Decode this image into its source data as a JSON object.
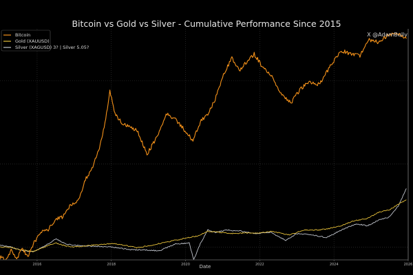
{
  "chart_data": {
    "type": "line",
    "title": "Bitcoin vs Gold vs Silver - Cumulative Performance Since 2015",
    "xlabel": "Date",
    "ylabel": "",
    "y_scale": "log",
    "y_unit": "growth multiple of 2015 value (approx.)",
    "xlim": [
      2015.0,
      2026.0
    ],
    "ylim": [
      0.7,
      420
    ],
    "x_ticks": [
      2016,
      2018,
      2020,
      2022,
      2024,
      2026
    ],
    "x_tick_labels": [
      "2016",
      "2018",
      "2020",
      "2022",
      "2024",
      "2026"
    ],
    "y_gridlines": [
      1,
      10,
      100
    ],
    "grid": true,
    "legend_position": "top-left",
    "watermark": "X @AdamBullv",
    "series": [
      {
        "name": "Bitcoin",
        "color": "#f7931a",
        "x": [
          2015.0,
          2015.15,
          2015.3,
          2015.45,
          2015.6,
          2015.75,
          2015.9,
          2016.1,
          2016.3,
          2016.5,
          2016.7,
          2016.9,
          2017.1,
          2017.3,
          2017.5,
          2017.7,
          2017.85,
          2017.96,
          2018.1,
          2018.3,
          2018.5,
          2018.7,
          2018.96,
          2019.2,
          2019.5,
          2019.7,
          2019.9,
          2020.2,
          2020.4,
          2020.6,
          2020.8,
          2021.0,
          2021.25,
          2021.45,
          2021.6,
          2021.85,
          2022.1,
          2022.35,
          2022.55,
          2022.85,
          2023.1,
          2023.3,
          2023.6,
          2023.9,
          2024.2,
          2024.45,
          2024.7,
          2024.95,
          2025.2,
          2025.45,
          2025.7,
          2025.95
        ],
        "values": [
          0.75,
          0.72,
          0.9,
          0.72,
          0.95,
          0.75,
          1.1,
          1.5,
          1.6,
          2.2,
          2.3,
          3.2,
          3.5,
          6.5,
          9,
          17,
          35,
          75,
          40,
          30,
          28,
          25,
          13,
          20,
          40,
          35,
          28,
          19,
          32,
          40,
          60,
          110,
          190,
          130,
          160,
          210,
          140,
          110,
          70,
          55,
          80,
          95,
          90,
          150,
          230,
          210,
          200,
          310,
          290,
          350,
          380,
          320
        ]
      },
      {
        "name": "Gold (XAUUSD)",
        "color": "#e8c23a",
        "x": [
          2015.0,
          2015.3,
          2015.6,
          2015.9,
          2016.2,
          2016.5,
          2016.8,
          2017.0,
          2017.5,
          2018.0,
          2018.3,
          2018.7,
          2019.0,
          2019.5,
          2019.9,
          2020.3,
          2020.6,
          2020.9,
          2021.3,
          2021.7,
          2022.0,
          2022.3,
          2022.8,
          2023.2,
          2023.6,
          2023.9,
          2024.2,
          2024.5,
          2024.9,
          2025.2,
          2025.5,
          2025.8,
          2025.95
        ],
        "values": [
          1.0,
          0.98,
          0.92,
          0.88,
          1.0,
          1.12,
          1.02,
          1.0,
          1.05,
          1.1,
          1.06,
          0.98,
          1.03,
          1.15,
          1.25,
          1.35,
          1.55,
          1.5,
          1.45,
          1.48,
          1.47,
          1.55,
          1.4,
          1.6,
          1.6,
          1.68,
          1.8,
          2.05,
          2.2,
          2.6,
          2.8,
          3.4,
          3.7
        ]
      },
      {
        "name": "Silver (XAGUSD) 3?  |  Silver 5.05?",
        "color": "#c0c4cc",
        "x": [
          2015.0,
          2015.3,
          2015.6,
          2015.9,
          2016.2,
          2016.5,
          2016.8,
          2017.0,
          2017.5,
          2018.0,
          2018.5,
          2018.9,
          2019.3,
          2019.7,
          2020.1,
          2020.22,
          2020.4,
          2020.6,
          2020.8,
          2021.1,
          2021.5,
          2021.9,
          2022.3,
          2022.7,
          2023.0,
          2023.4,
          2023.8,
          2024.2,
          2024.6,
          2024.9,
          2025.2,
          2025.5,
          2025.75,
          2025.95
        ],
        "values": [
          1.05,
          1.0,
          0.9,
          0.88,
          1.02,
          1.25,
          1.08,
          1.05,
          1.02,
          1.0,
          0.93,
          0.92,
          0.9,
          1.08,
          1.12,
          0.7,
          1.1,
          1.6,
          1.5,
          1.6,
          1.55,
          1.45,
          1.5,
          1.2,
          1.45,
          1.4,
          1.3,
          1.6,
          1.9,
          1.8,
          2.1,
          2.3,
          3.2,
          5.05
        ]
      }
    ]
  }
}
